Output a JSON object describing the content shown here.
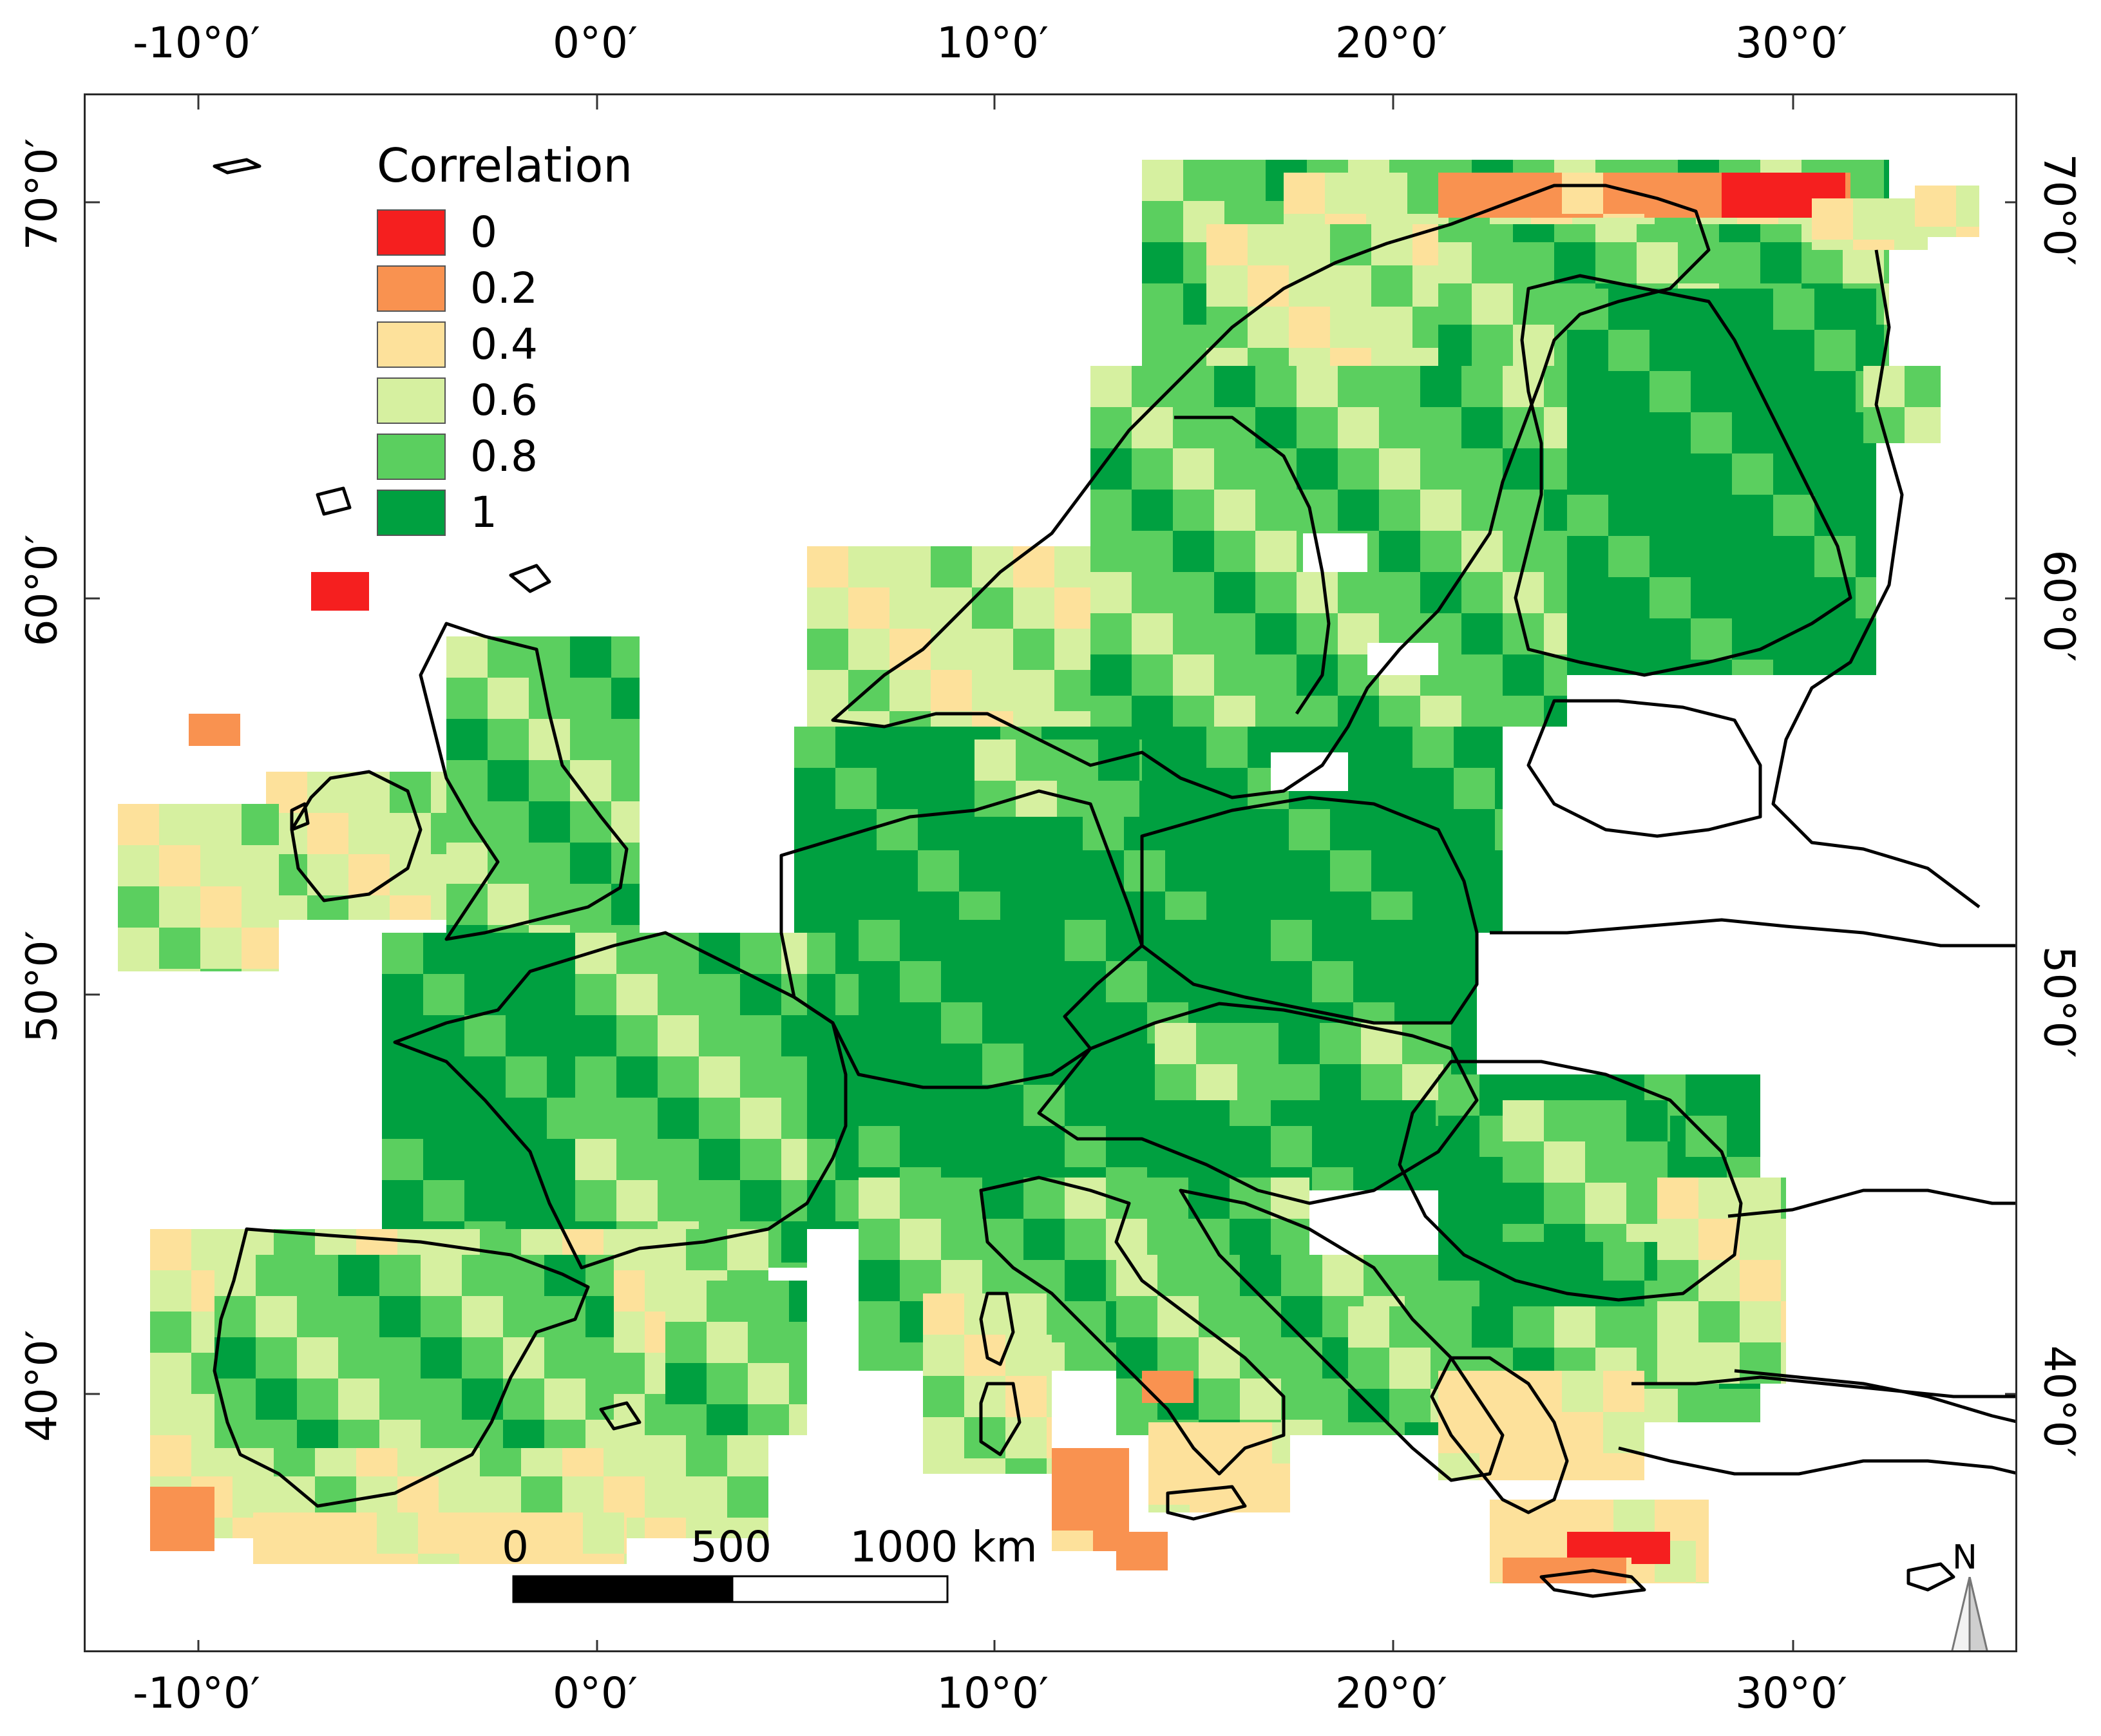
{
  "legend": {
    "title": "Correlation",
    "items": [
      {
        "label": "0",
        "color": "#f51f1f"
      },
      {
        "label": "0.2",
        "color": "#f99250"
      },
      {
        "label": "0.4",
        "color": "#fde19b"
      },
      {
        "label": "0.6",
        "color": "#d6f0a0"
      },
      {
        "label": "0.8",
        "color": "#5bcf5f"
      },
      {
        "label": "1",
        "color": "#00a040"
      }
    ]
  },
  "axes": {
    "lon_labels": [
      "-10°0′",
      "0°0′",
      "10°0′",
      "20°0′",
      "30°0′"
    ],
    "lat_labels": [
      "70°0′",
      "60°0′",
      "50°0′",
      "40°0′"
    ]
  },
  "scalebar": {
    "labels": [
      "0",
      "500",
      "1000 km"
    ]
  },
  "north_arrow": {
    "label": "N",
    "icon": "north-arrow-icon"
  }
}
